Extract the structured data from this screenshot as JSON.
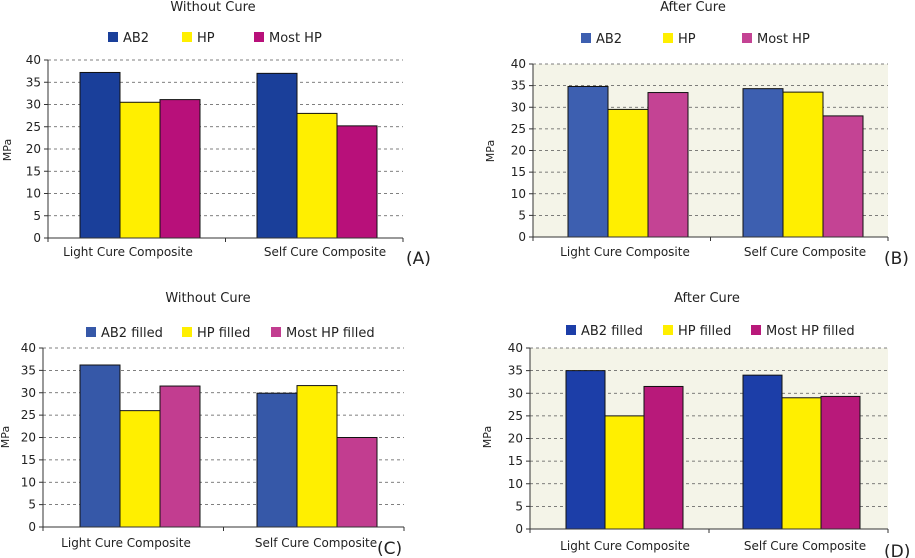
{
  "chart_data": [
    {
      "type": "bar",
      "panel_label": "(A)",
      "title": "Without Cure",
      "ylabel": "MPa",
      "xlabel": "",
      "ylim": [
        0,
        40
      ],
      "yticks": [
        0,
        5,
        10,
        15,
        20,
        25,
        30,
        35,
        40
      ],
      "categories": [
        "Light Cure Composite",
        "Self Cure Composite"
      ],
      "series": [
        {
          "name": "AB2",
          "color": "#1a3f9a",
          "values": [
            37.2,
            37.0
          ]
        },
        {
          "name": "HP",
          "color": "#ffef00",
          "values": [
            30.5,
            28.0
          ]
        },
        {
          "name": "Most HP",
          "color": "#b8107a",
          "values": [
            31.1,
            25.2
          ]
        }
      ],
      "legend": "top",
      "grid": "dashed"
    },
    {
      "type": "bar",
      "panel_label": "(B)",
      "title": "After Cure",
      "ylabel": "MPa",
      "xlabel": "",
      "ylim": [
        0,
        40
      ],
      "yticks": [
        0,
        5,
        10,
        15,
        20,
        25,
        30,
        35,
        40
      ],
      "categories": [
        "Light Cure Composite",
        "Self Cure Composite"
      ],
      "series": [
        {
          "name": "AB2",
          "color": "#3d5fb0",
          "values": [
            34.8,
            34.3
          ]
        },
        {
          "name": "HP",
          "color": "#ffef00",
          "values": [
            29.5,
            33.5
          ]
        },
        {
          "name": "Most HP",
          "color": "#c44394",
          "values": [
            33.4,
            28.0
          ]
        }
      ],
      "legend": "top",
      "grid": "dashed"
    },
    {
      "type": "bar",
      "panel_label": "(C)",
      "title": "Without Cure",
      "ylabel": "MPa",
      "xlabel": "",
      "ylim": [
        0,
        40
      ],
      "yticks": [
        0,
        5,
        10,
        15,
        20,
        25,
        30,
        35,
        40
      ],
      "categories": [
        "Light Cure Composite",
        "Self Cure Composite"
      ],
      "series": [
        {
          "name": "AB2 filled",
          "color": "#3658a8",
          "values": [
            36.2,
            29.9
          ]
        },
        {
          "name": "HP filled",
          "color": "#ffef00",
          "values": [
            26.0,
            31.6
          ]
        },
        {
          "name": "Most HP filled",
          "color": "#c23d90",
          "values": [
            31.5,
            20.0
          ]
        }
      ],
      "legend": "top",
      "grid": "dashed"
    },
    {
      "type": "bar",
      "panel_label": "(D)",
      "title": "After Cure",
      "ylabel": "MPa",
      "xlabel": "",
      "ylim": [
        0,
        40
      ],
      "yticks": [
        0,
        5,
        10,
        15,
        20,
        25,
        30,
        35,
        40
      ],
      "categories": [
        "Light Cure Composite",
        "Self Cure Composite"
      ],
      "series": [
        {
          "name": "AB2 filled",
          "color": "#1c3ea8",
          "values": [
            35.0,
            34.0
          ]
        },
        {
          "name": "HP filled",
          "color": "#ffef00",
          "values": [
            25.0,
            29.0
          ]
        },
        {
          "name": "Most HP filled",
          "color": "#b8197a",
          "values": [
            31.5,
            29.3
          ]
        }
      ],
      "legend": "top",
      "grid": "dashed"
    }
  ]
}
